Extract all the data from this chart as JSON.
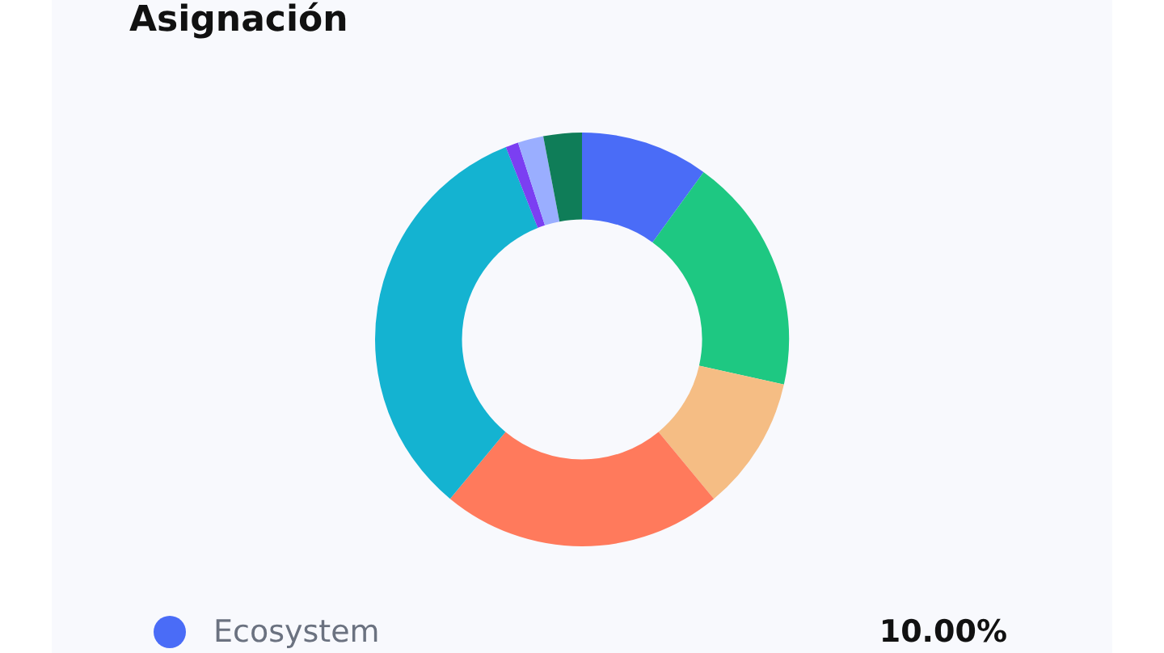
{
  "chart_data": {
    "type": "donut",
    "title": "Asignación",
    "categories": [
      "Ecosystem",
      null,
      null,
      null,
      null,
      null,
      null,
      null
    ],
    "values": [
      10,
      18.5,
      10.5,
      22,
      33,
      1,
      2,
      3
    ],
    "colors": [
      "#4a6cf7",
      "#1ec882",
      "#f5bd84",
      "#ff7a5c",
      "#14b3d1",
      "#7b3ff2",
      "#9aaeff",
      "#0f7d58"
    ],
    "value_labels": [
      "10.00%",
      null,
      null,
      null,
      null,
      null,
      null,
      null
    ],
    "legend": "bottom"
  }
}
